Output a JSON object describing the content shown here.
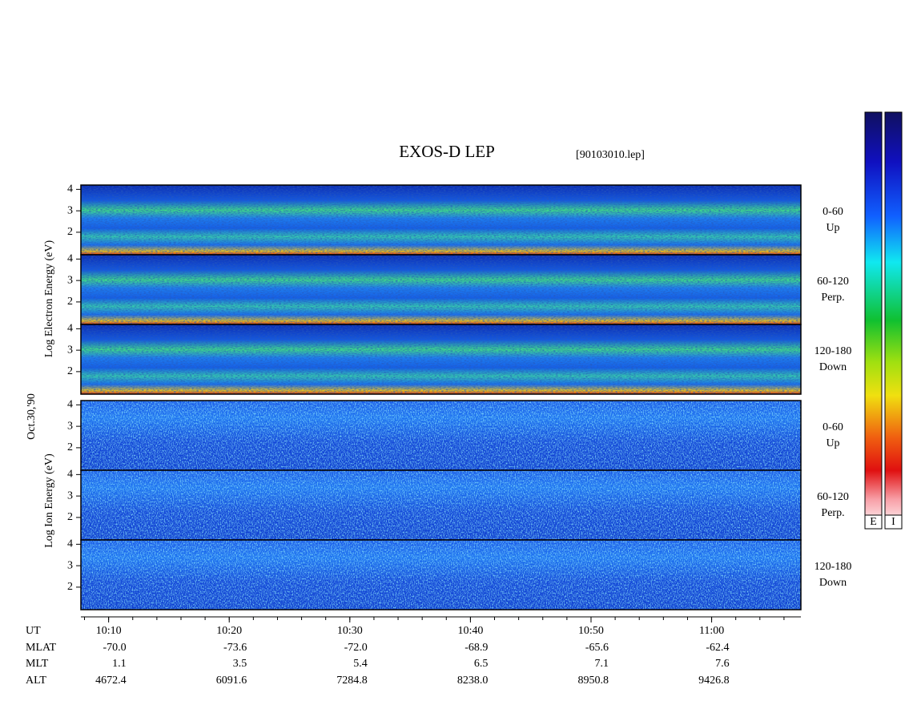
{
  "title": "EXOS-D LEP",
  "file": "[90103010.lep]",
  "date": "Oct.30,'90",
  "electron": {
    "axis_label": "Log Electron Energy (eV)",
    "panels": [
      {
        "range": "0-60",
        "dir": "Up"
      },
      {
        "range": "60-120",
        "dir": "Perp."
      },
      {
        "range": "120-180",
        "dir": "Down"
      }
    ]
  },
  "ion": {
    "axis_label": "Log Ion Energy (eV)",
    "panels": [
      {
        "range": "0-60",
        "dir": "Up"
      },
      {
        "range": "60-120",
        "dir": "Perp."
      },
      {
        "range": "120-180",
        "dir": "Down"
      }
    ]
  },
  "ylim": [
    0.95,
    4.2
  ],
  "yticks": [
    2,
    3,
    4
  ],
  "time_axis": {
    "xlim": [
      607.7,
      667.4
    ],
    "xticks": [
      {
        "value": 610,
        "label": "10:10"
      },
      {
        "value": 620,
        "label": "10:20"
      },
      {
        "value": 630,
        "label": "10:30"
      },
      {
        "value": 640,
        "label": "10:40"
      },
      {
        "value": 650,
        "label": "10:50"
      },
      {
        "value": 660,
        "label": "11:00"
      }
    ],
    "rows": [
      {
        "name": "UT"
      },
      {
        "name": "MLAT",
        "values": [
          "-70.0",
          "-73.6",
          "-72.0",
          "-68.9",
          "-65.6",
          "-62.4"
        ]
      },
      {
        "name": "MLT",
        "values": [
          "1.1",
          "3.5",
          "5.4",
          "6.5",
          "7.1",
          "7.6"
        ]
      },
      {
        "name": "ALT",
        "values": [
          "4672.4",
          "6091.6",
          "7284.8",
          "8238.0",
          "8950.8",
          "9426.8"
        ]
      }
    ]
  },
  "colorbar": [
    "E",
    "I"
  ]
}
